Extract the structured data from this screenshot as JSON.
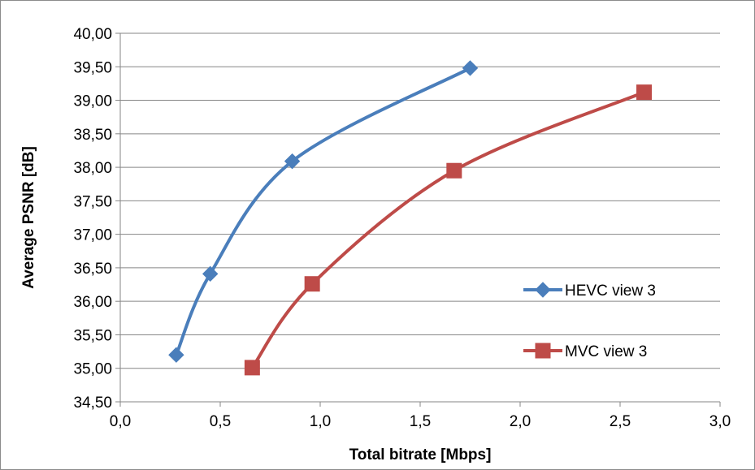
{
  "chart_data": {
    "type": "line",
    "title": "",
    "xlabel": "Total bitrate [Mbps]",
    "ylabel": "Average PSNR [dB]",
    "xlim": [
      0,
      3.0
    ],
    "ylim": [
      34.5,
      40.0
    ],
    "x_ticks": [
      "0,0",
      "0,5",
      "1,0",
      "1,5",
      "2,0",
      "2,5",
      "3,0"
    ],
    "y_ticks": [
      "34,50",
      "35,00",
      "35,50",
      "36,00",
      "36,50",
      "37,00",
      "37,50",
      "38,00",
      "38,50",
      "39,00",
      "39,50",
      "40,00"
    ],
    "grid": "horizontal",
    "legend_position": "right",
    "series": [
      {
        "name": "HEVC view 3",
        "color": "#4a7ebb",
        "marker": "diamond",
        "x": [
          0.28,
          0.45,
          0.86,
          1.75
        ],
        "y": [
          35.2,
          36.41,
          38.09,
          39.48
        ]
      },
      {
        "name": "MVC view 3",
        "color": "#be4b48",
        "marker": "square",
        "x": [
          0.66,
          0.96,
          1.67,
          2.62
        ],
        "y": [
          35.01,
          36.26,
          37.95,
          39.12
        ]
      }
    ]
  }
}
